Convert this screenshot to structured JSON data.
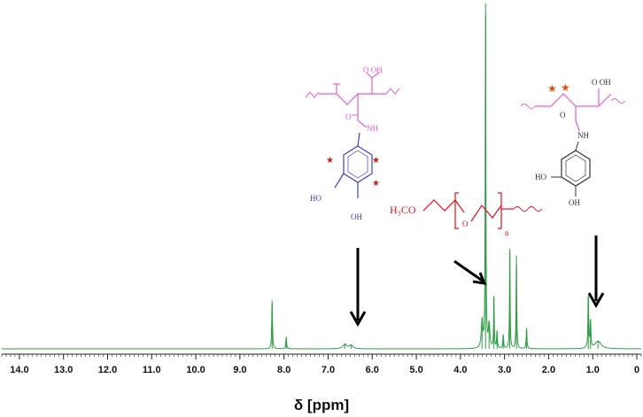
{
  "chart_data": {
    "type": "line",
    "title": "",
    "xlabel": "δ [ppm]",
    "ylabel": "",
    "x_reversed": true,
    "xlim": [
      14.4,
      -0.1
    ],
    "ylim": [
      0,
      100
    ],
    "grid": false,
    "line_color": "#2e9b45",
    "x_ticks": [
      "14.0",
      "13.0",
      "12.0",
      "11.0",
      "10.0",
      "9.0",
      "8.0",
      "7.0",
      "6.0",
      "5.0",
      "4.0",
      "3.0",
      "2.0",
      "1.0",
      "0"
    ],
    "x_tick_values": [
      14,
      13,
      12,
      11,
      10,
      9,
      8,
      7,
      6,
      5,
      4,
      3,
      2,
      1,
      0
    ],
    "peaks": [
      {
        "ppm": 8.27,
        "height": 14.0,
        "width": 0.01
      },
      {
        "ppm": 7.95,
        "height": 3.5,
        "width": 0.01
      },
      {
        "ppm": 6.62,
        "height": 1.3,
        "width": 0.05
      },
      {
        "ppm": 6.48,
        "height": 1.0,
        "width": 0.05
      },
      {
        "ppm": 3.51,
        "height": 8.0,
        "width": 0.02
      },
      {
        "ppm": 3.43,
        "height": 100.0,
        "width": 0.008
      },
      {
        "ppm": 3.35,
        "height": 7.0,
        "width": 0.02
      },
      {
        "ppm": 3.24,
        "height": 15.0,
        "width": 0.008
      },
      {
        "ppm": 3.17,
        "height": 5.0,
        "width": 0.01
      },
      {
        "ppm": 3.03,
        "height": 4.0,
        "width": 0.01
      },
      {
        "ppm": 2.88,
        "height": 29.0,
        "width": 0.008
      },
      {
        "ppm": 2.73,
        "height": 27.0,
        "width": 0.008
      },
      {
        "ppm": 2.5,
        "height": 6.0,
        "width": 0.01
      },
      {
        "ppm": 1.1,
        "height": 15.5,
        "width": 0.01
      },
      {
        "ppm": 1.05,
        "height": 8.0,
        "width": 0.01
      },
      {
        "ppm": 0.88,
        "height": 2.2,
        "width": 0.08
      }
    ]
  },
  "annotations": {
    "cooh_label": "O OH",
    "nh_label": "NH",
    "ho_label_1": "HO",
    "ho_label_2": "OH",
    "peg_start": "H₃CO",
    "peg_o": "O",
    "peg_n": "n",
    "right_cooh": "O OH",
    "right_nh": "NH",
    "right_ho_1": "HO",
    "right_ho_2": "OH"
  },
  "colors": {
    "spectrum": "#2e9b45",
    "backbone": "#e060d0",
    "ring": "#4040c0",
    "peg": "#e01020",
    "star": "#c02010",
    "arrow": "#000000"
  }
}
